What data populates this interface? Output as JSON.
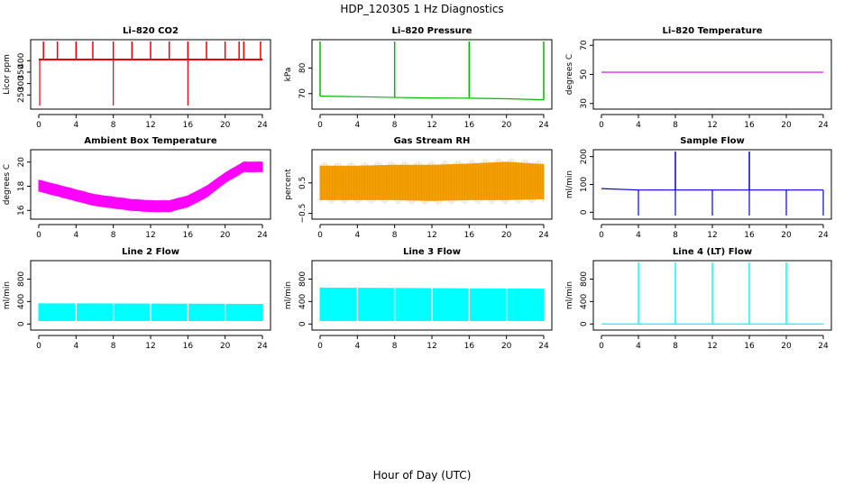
{
  "figure": {
    "title": "HDP_120305  1 Hz Diagnostics",
    "xlabel": "Hour of Day (UTC)"
  },
  "chart_data": [
    {
      "type": "line",
      "title": "Li–820 CO2",
      "ylabel": "Licor ppm",
      "color": "#ee0000",
      "xlim": [
        0,
        24
      ],
      "ylim": [
        200,
        480
      ],
      "yticks": [
        "250",
        "300",
        "350",
        "400"
      ],
      "x": [
        0,
        2,
        4,
        6,
        8,
        10,
        12,
        14,
        16,
        18,
        20,
        22,
        24
      ],
      "values": [
        405,
        405,
        405,
        405,
        405,
        405,
        405,
        405,
        405,
        405,
        405,
        405,
        405
      ],
      "spikes_up": [
        0.5,
        2,
        4,
        5.8,
        8,
        10,
        12,
        14,
        16,
        18,
        20,
        21.5,
        22,
        23.8
      ],
      "spikes_down": [
        0.1,
        8,
        16
      ]
    },
    {
      "type": "line",
      "title": "Li–820 Pressure",
      "ylabel": "kPa",
      "color": "#00bb00",
      "xlim": [
        0,
        24
      ],
      "ylim": [
        65,
        90
      ],
      "yticks": [
        "70",
        "80"
      ],
      "x": [
        0,
        4,
        8,
        12,
        16,
        20,
        24
      ],
      "values": [
        69,
        68.8,
        68.5,
        68.3,
        68.2,
        68.0,
        67.6
      ],
      "spikes_up": [
        0,
        8,
        16,
        24
      ]
    },
    {
      "type": "line",
      "title": "Li–820 Temperature",
      "ylabel": "degrees C",
      "color": "#dd00dd",
      "xlim": [
        0,
        24
      ],
      "ylim": [
        28,
        72
      ],
      "yticks": [
        "30",
        "50",
        "70"
      ],
      "x": [
        0,
        24
      ],
      "values": [
        51.5,
        51.5
      ]
    },
    {
      "type": "area",
      "title": "Ambient Box Temperature",
      "ylabel": "degrees C",
      "color": "#ff00ff",
      "xlim": [
        0,
        24
      ],
      "ylim": [
        15.5,
        20.8
      ],
      "yticks": [
        "16",
        "18",
        "20"
      ],
      "x": [
        0,
        2,
        4,
        6,
        8,
        10,
        12,
        14,
        16,
        18,
        20,
        22,
        24
      ],
      "upper": [
        18.5,
        18.1,
        17.7,
        17.3,
        17.1,
        16.9,
        16.8,
        16.8,
        17.2,
        18.0,
        19.1,
        20.0,
        20.0
      ],
      "lower": [
        17.6,
        17.2,
        16.8,
        16.4,
        16.2,
        16.0,
        15.9,
        15.9,
        16.3,
        17.1,
        18.3,
        19.2,
        19.2
      ]
    },
    {
      "type": "area",
      "title": "Gas Stream RH",
      "ylabel": "percent",
      "color": "#ffa500",
      "xlim": [
        0,
        24
      ],
      "ylim": [
        -0.6,
        1.5
      ],
      "yticks": [
        "−0.5",
        "0.5"
      ],
      "x": [
        0,
        4,
        8,
        12,
        16,
        20,
        24
      ],
      "upper": [
        1.05,
        1.05,
        1.08,
        1.08,
        1.12,
        1.18,
        1.1
      ],
      "lower": [
        -0.05,
        -0.05,
        -0.05,
        -0.08,
        -0.05,
        -0.05,
        -0.02
      ]
    },
    {
      "type": "line",
      "title": "Sample Flow",
      "ylabel": "ml/min",
      "color": "#0000ee",
      "xlim": [
        0,
        24
      ],
      "ylim": [
        -15,
        215
      ],
      "yticks": [
        "0",
        "100",
        "200"
      ],
      "x": [
        0,
        4,
        8,
        12,
        16,
        20,
        24
      ],
      "values": [
        85,
        80,
        80,
        80,
        80,
        80,
        80
      ],
      "spikes_up": [
        8,
        16
      ],
      "spikes_down": [
        4,
        8,
        12,
        16,
        20,
        24
      ]
    },
    {
      "type": "area",
      "title": "Line 2 Flow",
      "ylabel": "ml/min",
      "color": "#00ffff",
      "xlim": [
        0,
        24
      ],
      "ylim": [
        -60,
        1080
      ],
      "yticks": [
        "0",
        "400",
        "800"
      ],
      "x": [
        0,
        24
      ],
      "upper": [
        360,
        350
      ],
      "lower": [
        60,
        60
      ],
      "gaps": [
        4,
        8,
        12,
        16,
        20
      ]
    },
    {
      "type": "area",
      "title": "Line 3 Flow",
      "ylabel": "ml/min",
      "color": "#00ffff",
      "xlim": [
        0,
        24
      ],
      "ylim": [
        -60,
        1080
      ],
      "yticks": [
        "0",
        "400",
        "800"
      ],
      "x": [
        0,
        24
      ],
      "upper": [
        640,
        620
      ],
      "lower": [
        60,
        60
      ],
      "gaps": [
        4,
        8,
        12,
        16,
        20
      ]
    },
    {
      "type": "line",
      "title": "Line 4 (LT) Flow",
      "ylabel": "ml/min",
      "color": "#00ffff",
      "xlim": [
        0,
        24
      ],
      "ylim": [
        -60,
        1080
      ],
      "yticks": [
        "0",
        "400",
        "800"
      ],
      "x": [
        0,
        24
      ],
      "values": [
        0,
        0
      ],
      "spikes_up": [
        4,
        8,
        12,
        16,
        20
      ]
    }
  ],
  "xticks": [
    "0",
    "4",
    "8",
    "12",
    "16",
    "20",
    "24"
  ]
}
